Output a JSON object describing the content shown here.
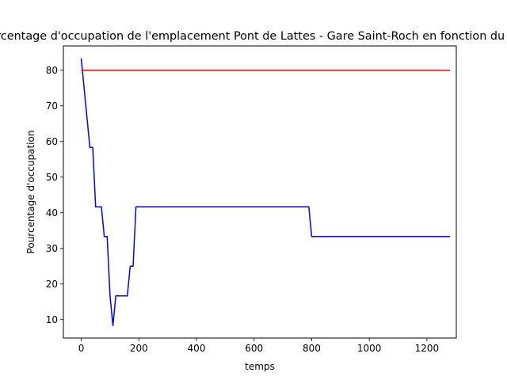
{
  "chart_data": {
    "type": "line",
    "title": "Pourcentage d'occupation de l'emplacement Pont de Lattes - Gare Saint-Roch en fonction du temps",
    "xlabel": "temps",
    "ylabel": "Pourcentage d'occupation",
    "xlim": [
      -62,
      1302
    ],
    "ylim": [
      4.83,
      86.83
    ],
    "xticks": [
      0,
      200,
      400,
      600,
      800,
      1000,
      1200
    ],
    "yticks": [
      10,
      20,
      30,
      40,
      50,
      60,
      70,
      80
    ],
    "grid": false,
    "series": [
      {
        "color": "#0000ff",
        "x": [
          0,
          10,
          20,
          30,
          40,
          50,
          60,
          70,
          80,
          90,
          100,
          110,
          120,
          130,
          140,
          150,
          160,
          170,
          180,
          190,
          200,
          400,
          600,
          790,
          800,
          1000,
          1280
        ],
        "y": [
          83.33,
          75,
          66.67,
          58.33,
          58.33,
          41.67,
          41.67,
          41.67,
          33.33,
          33.33,
          16.67,
          8.33,
          16.67,
          16.67,
          16.67,
          16.67,
          16.67,
          25,
          25,
          41.67,
          41.67,
          41.67,
          41.67,
          41.67,
          33.33,
          33.33,
          33.33
        ]
      },
      {
        "color": "#ff0000",
        "x": [
          0,
          1280
        ],
        "y": [
          80,
          80
        ]
      }
    ]
  }
}
